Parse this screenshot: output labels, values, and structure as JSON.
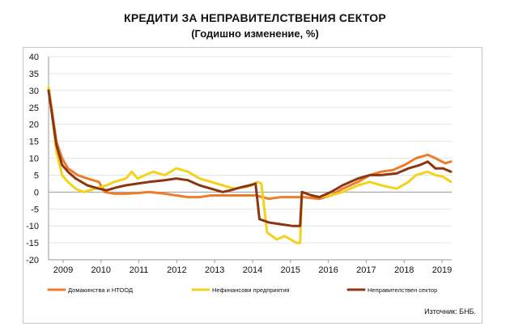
{
  "chart_data": {
    "type": "line",
    "title": "КРЕДИТИ ЗА НЕПРАВИТЕЛСТВЕНИЯ СЕКТОР",
    "subtitle": "(Годишно изменение, %)",
    "xlabel": "",
    "ylabel": "",
    "ylim": [
      -20,
      40
    ],
    "yticks": [
      40,
      35,
      30,
      25,
      20,
      15,
      10,
      5,
      0,
      -5,
      -10,
      -15,
      -20
    ],
    "x_tick_labels": [
      "2009",
      "2010",
      "2011",
      "2012",
      "2013",
      "2014",
      "2015",
      "2016",
      "2017",
      "2018",
      "2019"
    ],
    "x_range": [
      2009.0,
      2019.42
    ],
    "grid": "horizontal",
    "legend_position": "bottom",
    "source": "Източник: БНБ.",
    "series": [
      {
        "name": "Домакинства и НТООД",
        "color": "#ee7d2b",
        "x": [
          2009.0,
          2009.1,
          2009.2,
          2009.35,
          2009.5,
          2009.75,
          2010.0,
          2010.3,
          2010.45,
          2010.7,
          2011.0,
          2011.3,
          2011.6,
          2012.0,
          2012.3,
          2012.6,
          2012.9,
          2013.2,
          2013.5,
          2013.8,
          2014.1,
          2014.35,
          2014.7,
          2015.0,
          2015.3,
          2015.6,
          2016.0,
          2016.3,
          2016.6,
          2017.0,
          2017.3,
          2017.6,
          2017.9,
          2018.2,
          2018.5,
          2018.8,
          2019.0,
          2019.25,
          2019.4
        ],
        "y": [
          31,
          23,
          15,
          10,
          7,
          5,
          4,
          3,
          0,
          -0.5,
          -0.5,
          -0.3,
          0,
          -0.5,
          -1,
          -1.5,
          -1.5,
          -1,
          -1,
          -1,
          -1,
          -1,
          -2,
          -1.5,
          -1.5,
          -1.5,
          -2,
          -1,
          1,
          3,
          5,
          6,
          6.5,
          8,
          10,
          11,
          10,
          8.5,
          9
        ]
      },
      {
        "name": "Нефинансови предприятия",
        "color": "#f2d21c",
        "x": [
          2009.0,
          2009.1,
          2009.2,
          2009.35,
          2009.5,
          2009.7,
          2009.9,
          2010.2,
          2010.5,
          2010.7,
          2011.0,
          2011.15,
          2011.3,
          2011.5,
          2011.7,
          2012.0,
          2012.3,
          2012.6,
          2012.9,
          2013.2,
          2013.5,
          2013.8,
          2014.1,
          2014.25,
          2014.4,
          2014.5,
          2014.65,
          2014.9,
          2015.1,
          2015.4,
          2015.5,
          2015.55,
          2015.8,
          2016.0,
          2016.3,
          2016.6,
          2017.0,
          2017.3,
          2017.6,
          2018.0,
          2018.3,
          2018.5,
          2018.8,
          2019.0,
          2019.2,
          2019.4
        ],
        "y": [
          31,
          22,
          12,
          5,
          3,
          1,
          0,
          1,
          2,
          3,
          4,
          6,
          4,
          5,
          6,
          5,
          7,
          6,
          4,
          3,
          2,
          1,
          1.5,
          2,
          3,
          2.5,
          -12,
          -14,
          -13,
          -15,
          -15,
          0,
          -1,
          -1.5,
          -1,
          0,
          2,
          3,
          2,
          1,
          3,
          5,
          6,
          5,
          4.5,
          3
        ]
      },
      {
        "name": "Неправителствен сектор",
        "color": "#8c3510",
        "x": [
          2009.0,
          2009.1,
          2009.2,
          2009.35,
          2009.5,
          2009.7,
          2010.0,
          2010.3,
          2010.5,
          2010.8,
          2011.0,
          2011.3,
          2011.6,
          2012.0,
          2012.3,
          2012.6,
          2012.9,
          2013.2,
          2013.5,
          2013.7,
          2014.0,
          2014.2,
          2014.35,
          2014.45,
          2014.7,
          2015.0,
          2015.3,
          2015.5,
          2015.55,
          2015.8,
          2016.0,
          2016.3,
          2016.6,
          2017.0,
          2017.3,
          2017.6,
          2018.0,
          2018.3,
          2018.6,
          2018.8,
          2019.0,
          2019.2,
          2019.4
        ],
        "y": [
          30,
          22,
          14,
          8,
          6,
          4,
          2,
          1,
          0.5,
          1.5,
          2,
          2.5,
          3,
          3.5,
          4,
          3.5,
          2,
          1,
          0,
          0.5,
          1.5,
          2,
          2.5,
          -8,
          -9,
          -9.5,
          -10,
          -10,
          0,
          -1,
          -1.5,
          0,
          2,
          4,
          5,
          5,
          5.5,
          7,
          8,
          9,
          7,
          7,
          6
        ]
      }
    ]
  }
}
